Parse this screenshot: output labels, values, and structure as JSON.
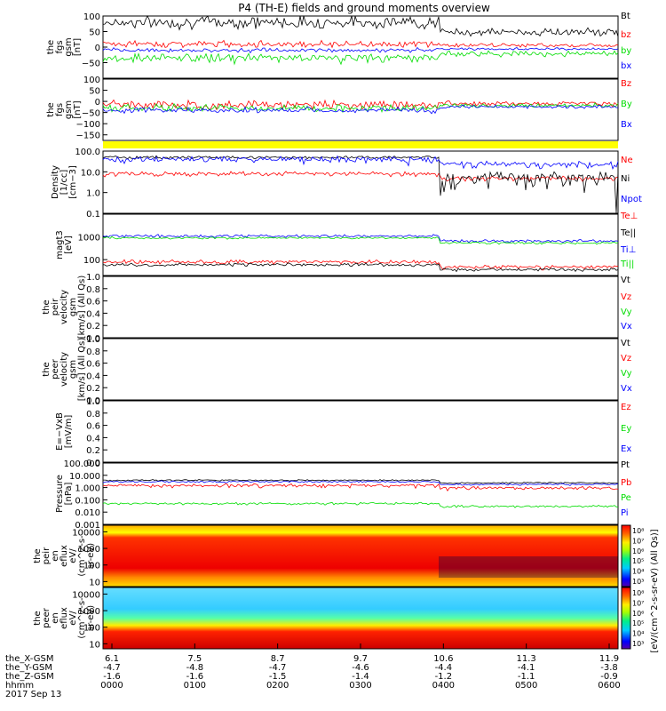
{
  "title": "P4 (TH-E) fields and ground moments overview",
  "date_label": "2017 Sep 13",
  "colors": {
    "black": "#000000",
    "red": "#ff0000",
    "green": "#00dd00",
    "blue": "#0000ff",
    "yellow": "#ffff00"
  },
  "chart_data": [
    {
      "type": "line",
      "panel": "fgs",
      "ylabel_lines": [
        "the",
        "fgs",
        "gsm",
        "[nT]"
      ],
      "ylim": [
        -100,
        100
      ],
      "yticks": [
        "100",
        "50",
        "0",
        "−50"
      ],
      "series": [
        {
          "name": "Bt",
          "color": "black"
        },
        {
          "name": "bz",
          "color": "red"
        },
        {
          "name": "by",
          "color": "green"
        },
        {
          "name": "bx",
          "color": "blue"
        }
      ]
    },
    {
      "type": "line",
      "panel": "fgs-gsm",
      "ylabel_lines": [
        "the",
        "fgs",
        "gsm",
        "[nT]"
      ],
      "ylim": [
        -175,
        100
      ],
      "yticks": [
        "100",
        "50",
        "0",
        "−50",
        "−100",
        "−150"
      ],
      "series": [
        {
          "name": "Bz",
          "color": "red"
        },
        {
          "name": "By",
          "color": "green"
        },
        {
          "name": "Bx",
          "color": "blue"
        }
      ]
    },
    {
      "type": "line",
      "panel": "density",
      "ylabel_lines": [
        "Density",
        "[1/cc]",
        "[cm−3]"
      ],
      "ylim": [
        0.1,
        100
      ],
      "log": true,
      "yticks": [
        "100.0",
        "10.0",
        "1.0",
        "0.1"
      ],
      "series": [
        {
          "name": "Ne",
          "color": "red"
        },
        {
          "name": "Ni",
          "color": "black"
        },
        {
          "name": "Npot",
          "color": "blue"
        }
      ]
    },
    {
      "type": "line",
      "panel": "temperature",
      "ylabel_lines": [
        "magt3",
        "[eV]"
      ],
      "ylim": [
        20,
        10000
      ],
      "log": true,
      "yticks": [
        "1000",
        "100"
      ],
      "series": [
        {
          "name": "Te⊥",
          "color": "red"
        },
        {
          "name": "Te||",
          "color": "black"
        },
        {
          "name": "Ti⊥",
          "color": "blue"
        },
        {
          "name": "Ti||",
          "color": "green"
        }
      ]
    },
    {
      "type": "line",
      "panel": "peir-velocity",
      "ylabel_lines": [
        "the",
        "peir",
        "velocity",
        "gsm",
        "[km/s] (All Qs)"
      ],
      "ylim": [
        0,
        1
      ],
      "yticks": [
        "1.0",
        "0.8",
        "0.6",
        "0.4",
        "0.2",
        "0.0"
      ],
      "series": [
        {
          "name": "Vt",
          "color": "black"
        },
        {
          "name": "Vz",
          "color": "red"
        },
        {
          "name": "Vy",
          "color": "green"
        },
        {
          "name": "Vx",
          "color": "blue"
        }
      ]
    },
    {
      "type": "line",
      "panel": "peer-velocity",
      "ylabel_lines": [
        "the",
        "peer",
        "velocity",
        "gsm",
        "[km/s] (All Qs)"
      ],
      "ylim": [
        0,
        1
      ],
      "yticks": [
        "1.0",
        "0.8",
        "0.6",
        "0.4",
        "0.2",
        "0.0"
      ],
      "series": [
        {
          "name": "Vt",
          "color": "black"
        },
        {
          "name": "Vz",
          "color": "red"
        },
        {
          "name": "Vy",
          "color": "green"
        },
        {
          "name": "Vx",
          "color": "blue"
        }
      ]
    },
    {
      "type": "line",
      "panel": "efield",
      "ylabel_lines": [
        "E=−VxB",
        "[mV/m]"
      ],
      "ylim": [
        0,
        1
      ],
      "yticks": [
        "1.0",
        "0.8",
        "0.6",
        "0.4",
        "0.2",
        "0.0"
      ],
      "series": [
        {
          "name": "Ez",
          "color": "red"
        },
        {
          "name": "Ey",
          "color": "green"
        },
        {
          "name": "Ex",
          "color": "blue"
        }
      ]
    },
    {
      "type": "line",
      "panel": "pressure",
      "ylabel_lines": [
        "Pressure",
        "[nPa]"
      ],
      "ylim": [
        0.001,
        100
      ],
      "log": true,
      "yticks": [
        "100.000",
        "10.000",
        "1.000",
        "0.100",
        "0.010",
        "0.001"
      ],
      "series": [
        {
          "name": "Pt",
          "color": "black"
        },
        {
          "name": "Pb",
          "color": "red"
        },
        {
          "name": "Pe",
          "color": "green"
        },
        {
          "name": "Pi",
          "color": "blue"
        }
      ]
    },
    {
      "type": "heatmap",
      "panel": "peir-eflux",
      "ylabel_lines": [
        "the",
        "peir",
        "en",
        "eflux",
        "eV/",
        "(cm^2-s-",
        "sr-eV)"
      ],
      "ylim": [
        5,
        25000
      ],
      "log": true,
      "yticks": [
        "10000",
        "1000",
        "100",
        "10"
      ],
      "colorbar": {
        "ticks": [
          "10⁸",
          "10⁷",
          "10⁶",
          "10⁵",
          "10⁴",
          "10³"
        ],
        "label": "eV/(cm^2-s-sr-eV) (All Qs)"
      }
    },
    {
      "type": "heatmap",
      "panel": "peer-eflux",
      "ylabel_lines": [
        "the",
        "peer",
        "en",
        "eflux",
        "eV/",
        "(cm^2-s-",
        "sr-eV)"
      ],
      "ylim": [
        5,
        25000
      ],
      "log": true,
      "yticks": [
        "10000",
        "1000",
        "100",
        "10"
      ],
      "colorbar": {
        "ticks": [
          "10⁸",
          "10⁷",
          "10⁶",
          "10⁵",
          "10⁴",
          "10³"
        ],
        "label": "eV/(cm^2-s-sr-eV) (All Qs)"
      }
    }
  ],
  "colorbar_label": "[eV/(cm^2-s-sr-eV) (All Qs)]",
  "x_axis": {
    "row_labels": [
      "the_X-GSM",
      "the_Y-GSM",
      "the_Z-GSM",
      "hhmm"
    ],
    "ticks": [
      {
        "values": [
          "6.1",
          "-4.7",
          "-1.6",
          "0000"
        ]
      },
      {
        "values": [
          "7.5",
          "-4.8",
          "-1.6",
          "0100"
        ]
      },
      {
        "values": [
          "8.7",
          "-4.7",
          "-1.5",
          "0200"
        ]
      },
      {
        "values": [
          "9.7",
          "-4.6",
          "-1.4",
          "0300"
        ]
      },
      {
        "values": [
          "10.6",
          "-4.4",
          "-1.2",
          "0400"
        ]
      },
      {
        "values": [
          "11.3",
          "-4.1",
          "-1.1",
          "0500"
        ]
      },
      {
        "values": [
          "11.9",
          "-3.8",
          "-0.9",
          "0600"
        ]
      }
    ]
  }
}
